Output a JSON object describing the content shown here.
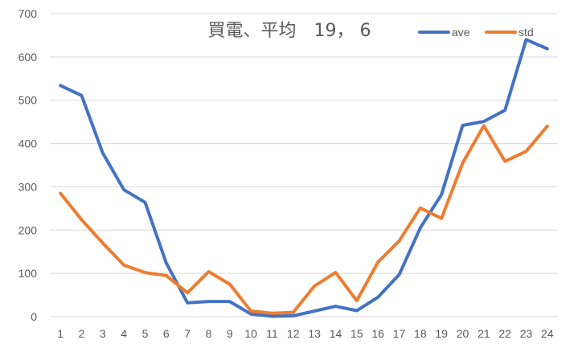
{
  "chart_data": {
    "type": "line",
    "title": "買電、平均　19，  6",
    "xlabel": "",
    "ylabel": "",
    "categories": [
      "1",
      "2",
      "3",
      "4",
      "5",
      "6",
      "7",
      "8",
      "9",
      "10",
      "11",
      "12",
      "13",
      "14",
      "15",
      "16",
      "17",
      "18",
      "19",
      "20",
      "21",
      "22",
      "23",
      "24"
    ],
    "ylim": [
      0,
      700
    ],
    "yticks": [
      0,
      100,
      200,
      300,
      400,
      500,
      600,
      700
    ],
    "grid": true,
    "legend_position": "top-right",
    "series": [
      {
        "name": "ave",
        "color": "#4472c4",
        "values": [
          534,
          511,
          378,
          293,
          264,
          124,
          32,
          35,
          35,
          6,
          1,
          2,
          13,
          24,
          14,
          45,
          97,
          205,
          282,
          442,
          451,
          477,
          640,
          619
        ]
      },
      {
        "name": "std",
        "color": "#ed7d31",
        "values": [
          285,
          224,
          170,
          119,
          102,
          95,
          55,
          104,
          75,
          13,
          8,
          10,
          71,
          102,
          37,
          126,
          175,
          251,
          227,
          355,
          441,
          359,
          382,
          440
        ]
      }
    ]
  }
}
